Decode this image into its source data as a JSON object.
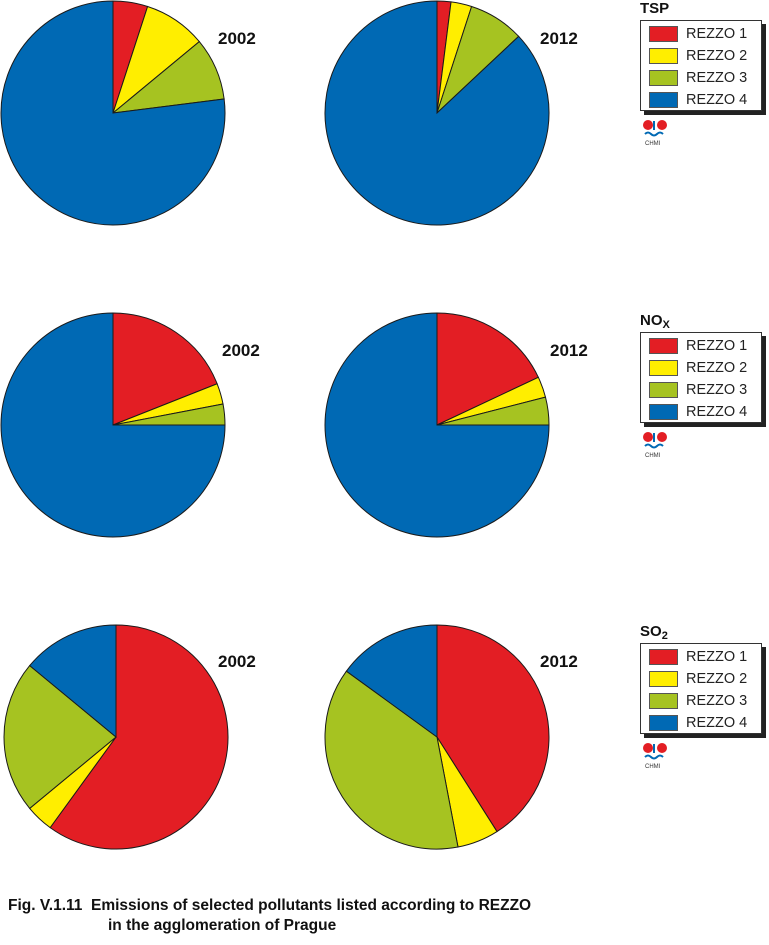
{
  "categories": [
    "REZZO 1",
    "REZZO 2",
    "REZZO 3",
    "REZZO 4"
  ],
  "colors": {
    "REZZO 1": "#e31e24",
    "REZZO 2": "#ffee00",
    "REZZO 3": "#a6c321",
    "REZZO 4": "#0069b4"
  },
  "chart_data": [
    {
      "type": "pie",
      "pollutant": "TSP",
      "year": "2002",
      "categories": [
        "REZZO 1",
        "REZZO 2",
        "REZZO 3",
        "REZZO 4"
      ],
      "values": [
        5,
        9,
        9,
        77
      ]
    },
    {
      "type": "pie",
      "pollutant": "TSP",
      "year": "2012",
      "categories": [
        "REZZO 1",
        "REZZO 2",
        "REZZO 3",
        "REZZO 4"
      ],
      "values": [
        2,
        3,
        8,
        87
      ]
    },
    {
      "type": "pie",
      "pollutant": "NOX",
      "year": "2002",
      "categories": [
        "REZZO 1",
        "REZZO 2",
        "REZZO 3",
        "REZZO 4"
      ],
      "values": [
        19,
        3,
        3,
        75
      ]
    },
    {
      "type": "pie",
      "pollutant": "NOX",
      "year": "2012",
      "categories": [
        "REZZO 1",
        "REZZO 2",
        "REZZO 3",
        "REZZO 4"
      ],
      "values": [
        18,
        3,
        4,
        75
      ]
    },
    {
      "type": "pie",
      "pollutant": "SO2",
      "year": "2002",
      "categories": [
        "REZZO 1",
        "REZZO 2",
        "REZZO 3",
        "REZZO 4"
      ],
      "values": [
        60,
        4,
        22,
        14
      ]
    },
    {
      "type": "pie",
      "pollutant": "SO2",
      "year": "2012",
      "categories": [
        "REZZO 1",
        "REZZO 2",
        "REZZO 3",
        "REZZO 4"
      ],
      "values": [
        41,
        6,
        38,
        15
      ]
    }
  ],
  "legends": [
    {
      "title": "TSP",
      "sub": ""
    },
    {
      "title": "NO",
      "sub": "X"
    },
    {
      "title": "SO",
      "sub": "2"
    }
  ],
  "logo_text": "CHMI",
  "caption": {
    "line1": "Fig. V.1.11  Emissions of selected pollutants listed according to REZZO",
    "line2": "in the agglomeration of Prague"
  }
}
